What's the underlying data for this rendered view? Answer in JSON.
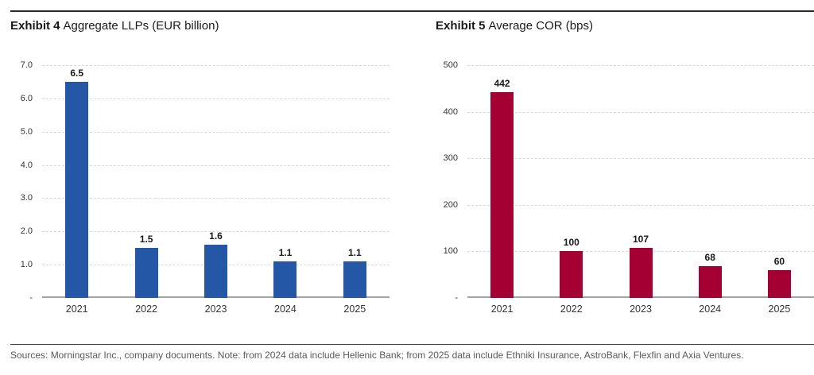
{
  "chart_data": [
    {
      "type": "bar",
      "title_prefix": "Exhibit 4",
      "title_text": "Aggregate LLPs (EUR billion)",
      "categories": [
        "2021",
        "2022",
        "2023",
        "2024",
        "2025"
      ],
      "values": [
        6.5,
        1.5,
        1.6,
        1.1,
        1.1
      ],
      "labels": [
        "6.5",
        "1.5",
        "1.6",
        "1.1",
        "1.1"
      ],
      "bar_color": "#2457a5",
      "ylim": [
        0,
        7
      ],
      "yticks": [
        {
          "value": 7,
          "label": "7.0"
        },
        {
          "value": 6,
          "label": "6.0"
        },
        {
          "value": 5,
          "label": "5.0"
        },
        {
          "value": 4,
          "label": "4.0"
        },
        {
          "value": 3,
          "label": "3.0"
        },
        {
          "value": 2,
          "label": "2.0"
        },
        {
          "value": 1,
          "label": "1.0"
        },
        {
          "value": 0,
          "label": "-"
        }
      ],
      "xlabel": "",
      "ylabel": "",
      "grid": "horizontal-dashed",
      "legend": "none"
    },
    {
      "type": "bar",
      "title_prefix": "Exhibit 5",
      "title_text": "Average COR (bps)",
      "categories": [
        "2021",
        "2022",
        "2023",
        "2024",
        "2025"
      ],
      "values": [
        442,
        100,
        107,
        68,
        60
      ],
      "labels": [
        "442",
        "100",
        "107",
        "68",
        "60"
      ],
      "bar_color": "#a50034",
      "ylim": [
        0,
        500
      ],
      "yticks": [
        {
          "value": 500,
          "label": "500"
        },
        {
          "value": 400,
          "label": "400"
        },
        {
          "value": 300,
          "label": "300"
        },
        {
          "value": 200,
          "label": "200"
        },
        {
          "value": 100,
          "label": "100"
        },
        {
          "value": 0,
          "label": "-"
        }
      ],
      "xlabel": "",
      "ylabel": "",
      "grid": "horizontal-dashed",
      "legend": "none"
    }
  ],
  "footer": {
    "source_text": "Sources: Morningstar Inc., company documents. Note: from 2024 data include Hellenic Bank; from 2025 data include Ethniki Insurance, AstroBank, Flexfin and Axia Ventures."
  },
  "colors": {
    "llps_bar": "#2457a5",
    "cor_bar": "#a50034",
    "gridline": "#d9d9d9",
    "axis_baseline": "#a3a3a3",
    "rule": "#2b2b2b",
    "source_text": "#595959"
  }
}
